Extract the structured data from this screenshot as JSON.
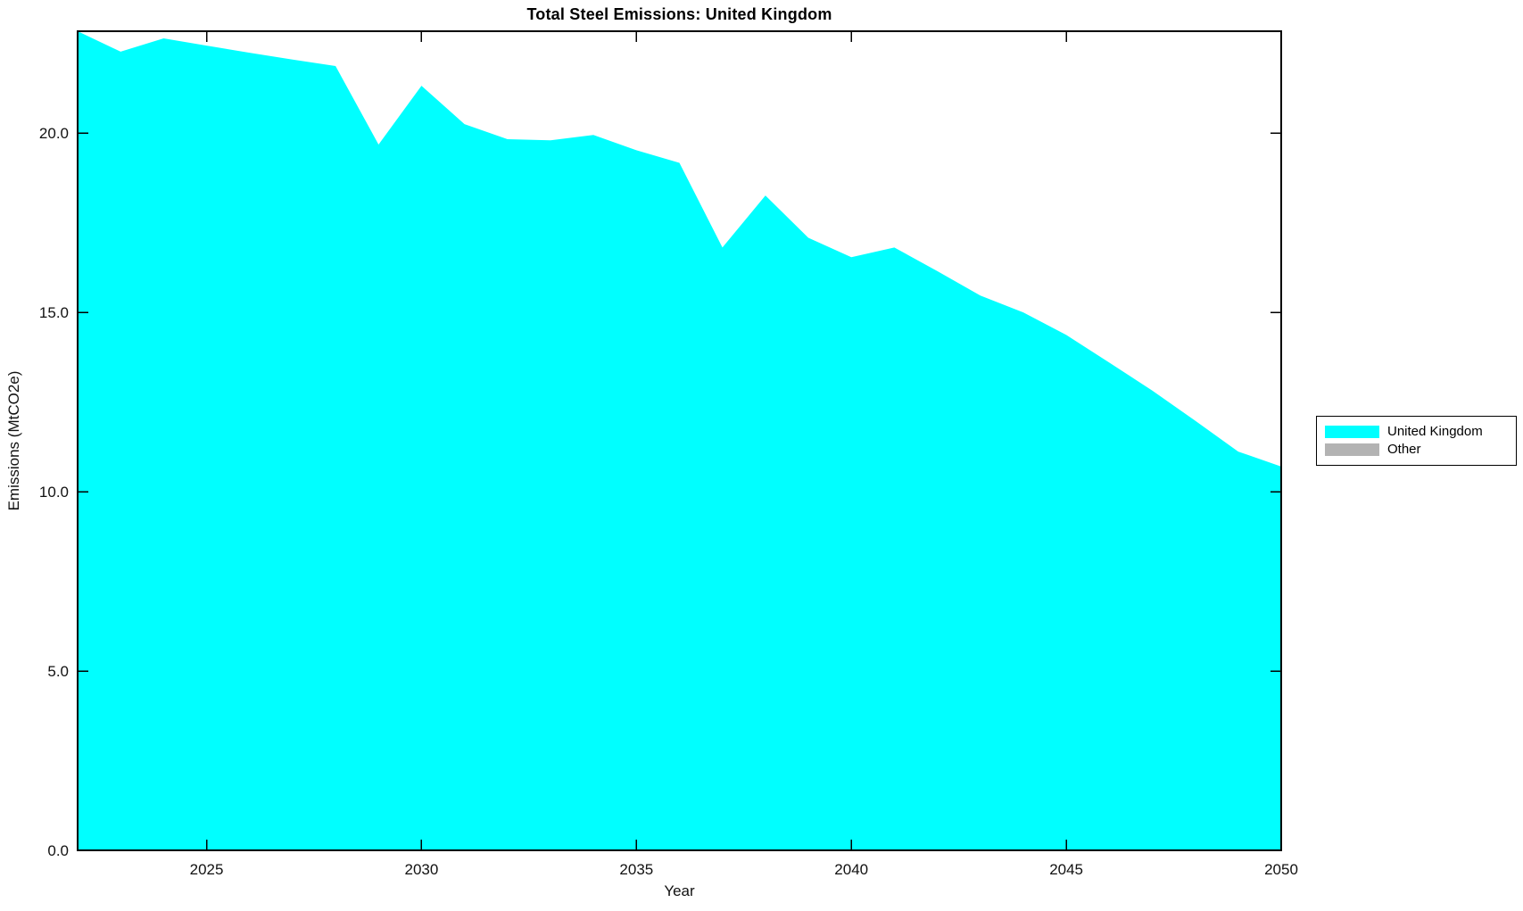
{
  "chart_data": {
    "type": "area",
    "title": "Total Steel Emissions: United Kingdom",
    "xlabel": "Year",
    "ylabel": "Emissions (MtCO2e)",
    "x": [
      2022,
      2023,
      2024,
      2025,
      2026,
      2027,
      2028,
      2029,
      2030,
      2031,
      2032,
      2033,
      2034,
      2035,
      2036,
      2037,
      2038,
      2039,
      2040,
      2041,
      2042,
      2043,
      2044,
      2045,
      2046,
      2047,
      2048,
      2049,
      2050
    ],
    "series": [
      {
        "name": "United Kingdom",
        "color": "#00ffff",
        "values": [
          22.84,
          22.27,
          22.64,
          22.44,
          22.24,
          22.05,
          21.87,
          19.68,
          21.32,
          20.25,
          19.83,
          19.8,
          19.95,
          19.52,
          19.17,
          16.81,
          18.26,
          17.08,
          16.54,
          16.81,
          16.15,
          15.47,
          15.0,
          14.37,
          13.6,
          12.82,
          11.98,
          11.12,
          10.7
        ]
      }
    ],
    "xlim": [
      2022,
      2050
    ],
    "ylim": [
      0,
      22.84
    ],
    "xticks": {
      "values": [
        2025,
        2030,
        2035,
        2040,
        2045,
        2050
      ],
      "labels": [
        "2025",
        "2030",
        "2035",
        "2040",
        "2045",
        "2050"
      ]
    },
    "yticks": {
      "values": [
        0,
        5,
        10,
        15,
        20
      ],
      "labels": [
        "0.0",
        "5.0",
        "10.0",
        "15.0",
        "20.0"
      ]
    },
    "grid": false,
    "legend_position": "outside-right",
    "legend": [
      {
        "label": "United Kingdom",
        "color": "#00ffff"
      },
      {
        "label": "Other",
        "color": "#b3b3b3"
      }
    ]
  }
}
